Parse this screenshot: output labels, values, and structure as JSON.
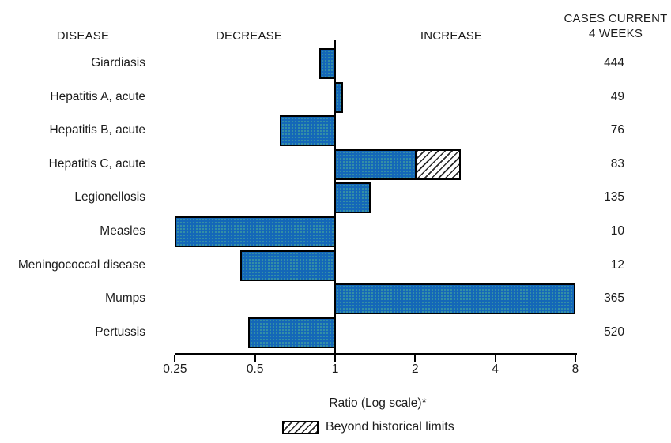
{
  "headers": {
    "disease": "DISEASE",
    "decrease": "DECREASE",
    "increase": "INCREASE",
    "cases_line1": "CASES CURRENT",
    "cases_line2": "4 WEEKS"
  },
  "colors": {
    "bar_fill": "#1467b8",
    "bar_border": "#000000",
    "text": "#1c1c1c",
    "hatch_stripe": "#2a2a2a"
  },
  "chart_data": {
    "type": "bar",
    "orientation": "horizontal",
    "scale": "log",
    "xlabel": "Ratio (Log scale)*",
    "legend_label": "Beyond historical limits",
    "x_ticks": [
      0.25,
      0.5,
      1,
      2,
      4,
      8
    ],
    "x_tick_labels": [
      "0.25",
      "0.5",
      "1",
      "2",
      "4",
      "8"
    ],
    "xlim": [
      0.25,
      8
    ],
    "baseline": 1,
    "rows": [
      {
        "disease": "Giardiasis",
        "ratio": 0.87,
        "cases": 444,
        "beyond_limit_from": null
      },
      {
        "disease": "Hepatitis A, acute",
        "ratio": 1.07,
        "cases": 49,
        "beyond_limit_from": null
      },
      {
        "disease": "Hepatitis B, acute",
        "ratio": 0.62,
        "cases": 76,
        "beyond_limit_from": null
      },
      {
        "disease": "Hepatitis C, acute",
        "ratio": 2.96,
        "cases": 83,
        "beyond_limit_from": 1.98
      },
      {
        "disease": "Legionellosis",
        "ratio": 1.36,
        "cases": 135,
        "beyond_limit_from": null
      },
      {
        "disease": "Measles",
        "ratio": 0.25,
        "cases": 10,
        "beyond_limit_from": null
      },
      {
        "disease": "Meningococcal disease",
        "ratio": 0.44,
        "cases": 12,
        "beyond_limit_from": null
      },
      {
        "disease": "Mumps",
        "ratio": 8.0,
        "cases": 365,
        "beyond_limit_from": null
      },
      {
        "disease": "Pertussis",
        "ratio": 0.47,
        "cases": 520,
        "beyond_limit_from": null
      }
    ]
  }
}
